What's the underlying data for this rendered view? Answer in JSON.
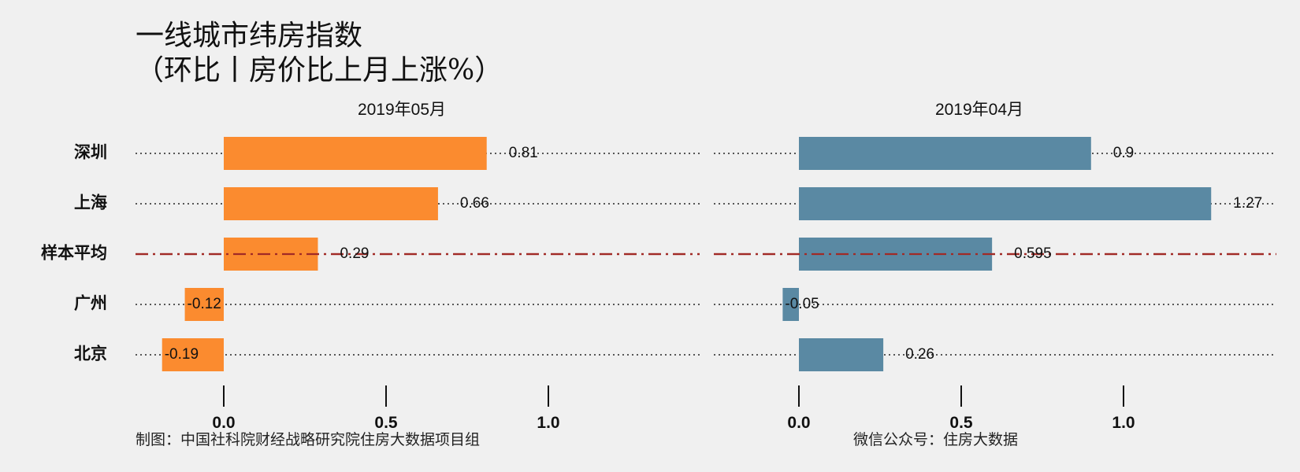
{
  "title": {
    "line1": "一线城市纬房指数",
    "line2": "（环比丨房价比上月上涨%）"
  },
  "footer": {
    "left": "制图：中国社科院财经战略研究院住房大数据项目组",
    "right": "微信公众号：住房大数据"
  },
  "chart_data": {
    "type": "bar",
    "orientation": "horizontal",
    "categories": [
      "深圳",
      "上海",
      "样本平均",
      "广州",
      "北京"
    ],
    "average_category": "样本平均",
    "facets": [
      {
        "title": "2019年05月",
        "values": [
          0.81,
          0.66,
          0.29,
          -0.12,
          -0.19
        ],
        "labels": [
          "0.81",
          "0.66",
          "0.29",
          "-0.12",
          "-0.19"
        ],
        "color": "#fb8b2f",
        "xlim": [
          -0.27,
          1.47
        ]
      },
      {
        "title": "2019年04月",
        "values": [
          0.9,
          1.27,
          0.595,
          -0.05,
          0.26
        ],
        "labels": [
          "0.9",
          "1.27",
          "0.595",
          "-0.05",
          "0.26"
        ],
        "color": "#5a89a3",
        "xlim": [
          -0.05,
          1.47
        ]
      }
    ],
    "ticks": [
      0,
      0.5,
      1
    ],
    "tick_labels": [
      "0.0",
      "0.5",
      "1.0"
    ],
    "average_line_color": "#a12a26",
    "guide_line_color": "#222222"
  }
}
